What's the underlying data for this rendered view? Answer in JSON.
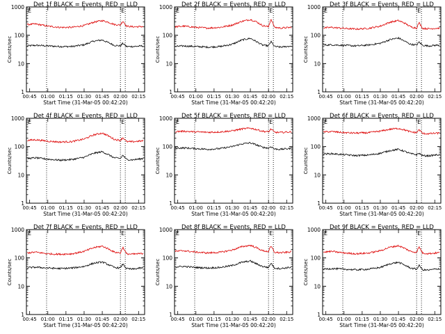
{
  "page": {
    "background": "#ffffff"
  },
  "colors": {
    "events": "#000000",
    "lld": "#dd0000",
    "axes": "#000000"
  },
  "chart_data": [
    {
      "type": "line",
      "title": "Det 1f  BLACK = Events, RED = LLD",
      "ylabel": "Counts/sec",
      "xlabel": "Start Time (31-Mar-05 00:42:20)",
      "xticks": [
        "00:45",
        "01:00",
        "01:15",
        "01:30",
        "01:45",
        "02:00",
        "02:15"
      ],
      "yticks": [
        "1",
        "10",
        "100",
        "1000"
      ],
      "ylim": [
        1,
        1000
      ],
      "yscale": "log",
      "xlim": [
        "00:42:20",
        "02:20:00"
      ],
      "vlines": [
        "00:59",
        "02:00",
        "02:04"
      ],
      "marker_labels": [
        "E",
        "E"
      ],
      "series": [
        {
          "name": "Events",
          "x": [
            "00:43",
            "00:50",
            "01:00",
            "01:10",
            "01:20",
            "01:30",
            "01:38",
            "01:45",
            "01:50",
            "01:55",
            "02:00",
            "02:02",
            "02:05",
            "02:10",
            "02:15",
            "02:19"
          ],
          "values": [
            42,
            44,
            42,
            40,
            40,
            46,
            62,
            68,
            55,
            44,
            42,
            52,
            40,
            40,
            41,
            42
          ]
        },
        {
          "name": "LLD",
          "x": [
            "00:43",
            "00:50",
            "01:00",
            "01:10",
            "01:20",
            "01:30",
            "01:38",
            "01:45",
            "01:50",
            "01:55",
            "02:00",
            "02:02",
            "02:05",
            "02:10",
            "02:15",
            "02:19"
          ],
          "values": [
            240,
            250,
            210,
            190,
            190,
            220,
            290,
            330,
            290,
            240,
            230,
            320,
            210,
            200,
            200,
            205
          ]
        }
      ]
    },
    {
      "type": "line",
      "title": "Det 2f  BLACK = Events, RED = LLD",
      "ylabel": "Counts/sec",
      "xlabel": "Start Time (31-Mar-05 00:42:20)",
      "xticks": [
        "00:45",
        "01:00",
        "01:15",
        "01:30",
        "01:45",
        "02:00",
        "02:15"
      ],
      "yticks": [
        "1",
        "10",
        "100",
        "1000"
      ],
      "ylim": [
        1,
        1000
      ],
      "yscale": "log",
      "xlim": [
        "00:42:20",
        "02:20:00"
      ],
      "vlines": [
        "00:59",
        "02:00",
        "02:04"
      ],
      "marker_labels": [
        "E",
        "E"
      ],
      "series": [
        {
          "name": "Events",
          "x": [
            "00:43",
            "00:50",
            "01:00",
            "01:10",
            "01:20",
            "01:30",
            "01:38",
            "01:45",
            "01:50",
            "01:55",
            "02:00",
            "02:02",
            "02:05",
            "02:10",
            "02:15",
            "02:19"
          ],
          "values": [
            40,
            42,
            40,
            38,
            40,
            48,
            68,
            78,
            60,
            45,
            42,
            60,
            40,
            38,
            40,
            42
          ]
        },
        {
          "name": "LLD",
          "x": [
            "00:43",
            "00:50",
            "01:00",
            "01:10",
            "01:20",
            "01:30",
            "01:38",
            "01:45",
            "01:50",
            "01:55",
            "02:00",
            "02:02",
            "02:05",
            "02:10",
            "02:15",
            "02:19"
          ],
          "values": [
            200,
            210,
            190,
            180,
            190,
            230,
            310,
            360,
            300,
            220,
            200,
            380,
            190,
            180,
            185,
            190
          ]
        }
      ]
    },
    {
      "type": "line",
      "title": "Det 3f  BLACK = Events, RED = LLD",
      "ylabel": "Counts/sec",
      "xlabel": "Start Time (31-Mar-05 00:42:20)",
      "xticks": [
        "00:45",
        "01:00",
        "01:15",
        "01:30",
        "01:45",
        "02:00",
        "02:15"
      ],
      "yticks": [
        "1",
        "10",
        "100",
        "1000"
      ],
      "ylim": [
        1,
        1000
      ],
      "yscale": "log",
      "xlim": [
        "00:42:20",
        "02:20:00"
      ],
      "vlines": [
        "00:59",
        "02:00",
        "02:04"
      ],
      "marker_labels": [
        "E",
        "E"
      ],
      "series": [
        {
          "name": "Events",
          "x": [
            "00:43",
            "00:50",
            "01:00",
            "01:10",
            "01:20",
            "01:30",
            "01:38",
            "01:45",
            "01:50",
            "01:55",
            "02:00",
            "02:02",
            "02:05",
            "02:10",
            "02:15",
            "02:19"
          ],
          "values": [
            45,
            46,
            44,
            42,
            45,
            52,
            70,
            80,
            62,
            48,
            45,
            58,
            44,
            42,
            44,
            45
          ]
        },
        {
          "name": "LLD",
          "x": [
            "00:43",
            "00:50",
            "01:00",
            "01:10",
            "01:20",
            "01:30",
            "01:38",
            "01:45",
            "01:50",
            "01:55",
            "02:00",
            "02:02",
            "02:05",
            "02:10",
            "02:15",
            "02:19"
          ],
          "values": [
            180,
            190,
            175,
            165,
            175,
            210,
            290,
            330,
            270,
            200,
            180,
            280,
            175,
            170,
            175,
            178
          ]
        }
      ]
    },
    {
      "type": "line",
      "title": "Det 4f  BLACK = Events, RED = LLD",
      "ylabel": "Counts/sec",
      "xlabel": "Start Time (31-Mar-05 00:42:20)",
      "xticks": [
        "00:45",
        "01:00",
        "01:15",
        "01:30",
        "01:45",
        "02:00",
        "02:15"
      ],
      "yticks": [
        "1",
        "10",
        "100",
        "1000"
      ],
      "ylim": [
        1,
        1000
      ],
      "yscale": "log",
      "xlim": [
        "00:42:20",
        "02:20:00"
      ],
      "vlines": [
        "00:59",
        "02:00",
        "02:04"
      ],
      "marker_labels": [
        "E",
        "E"
      ],
      "series": [
        {
          "name": "Events",
          "x": [
            "00:43",
            "00:50",
            "01:00",
            "01:10",
            "01:20",
            "01:30",
            "01:38",
            "01:45",
            "01:50",
            "01:55",
            "02:00",
            "02:02",
            "02:05",
            "02:10",
            "02:15",
            "02:19"
          ],
          "values": [
            38,
            40,
            36,
            33,
            35,
            42,
            58,
            66,
            52,
            40,
            38,
            50,
            35,
            34,
            36,
            38
          ]
        },
        {
          "name": "LLD",
          "x": [
            "00:43",
            "00:50",
            "01:00",
            "01:10",
            "01:20",
            "01:30",
            "01:38",
            "01:45",
            "01:50",
            "01:55",
            "02:00",
            "02:02",
            "02:05",
            "02:10",
            "02:15",
            "02:19"
          ],
          "values": [
            165,
            175,
            155,
            145,
            150,
            185,
            260,
            300,
            240,
            180,
            165,
            210,
            150,
            148,
            155,
            160
          ]
        }
      ]
    },
    {
      "type": "line",
      "title": "Det 5f  BLACK = Events, RED = LLD",
      "ylabel": "Counts/sec",
      "xlabel": "Start Time (31-Mar-05 00:42:20)",
      "xticks": [
        "00:45",
        "01:00",
        "01:15",
        "01:30",
        "01:45",
        "02:00",
        "02:15"
      ],
      "yticks": [
        "1",
        "10",
        "100",
        "1000"
      ],
      "ylim": [
        1,
        1000
      ],
      "yscale": "log",
      "xlim": [
        "00:42:20",
        "02:20:00"
      ],
      "vlines": [
        "00:59",
        "02:00",
        "02:04"
      ],
      "marker_labels": [
        "E",
        "E"
      ],
      "series": [
        {
          "name": "Events",
          "x": [
            "00:43",
            "00:50",
            "01:00",
            "01:10",
            "01:20",
            "01:30",
            "01:38",
            "01:45",
            "01:50",
            "01:55",
            "02:00",
            "02:02",
            "02:05",
            "02:10",
            "02:15",
            "02:19"
          ],
          "values": [
            88,
            90,
            85,
            80,
            85,
            100,
            125,
            135,
            115,
            95,
            88,
            100,
            82,
            80,
            84,
            86
          ]
        },
        {
          "name": "LLD",
          "x": [
            "00:43",
            "00:50",
            "01:00",
            "01:10",
            "01:20",
            "01:30",
            "01:38",
            "01:45",
            "01:50",
            "01:55",
            "02:00",
            "02:02",
            "02:05",
            "02:10",
            "02:15",
            "02:19"
          ],
          "values": [
            340,
            350,
            330,
            320,
            330,
            360,
            420,
            450,
            400,
            350,
            330,
            420,
            320,
            315,
            325,
            330
          ]
        }
      ]
    },
    {
      "type": "line",
      "title": "Det 6f  BLACK = Events, RED = LLD",
      "ylabel": "Counts/sec",
      "xlabel": "Start Time (31-Mar-05 00:42:20)",
      "xticks": [
        "00:45",
        "01:00",
        "01:15",
        "01:30",
        "01:45",
        "02:00",
        "02:15"
      ],
      "yticks": [
        "1",
        "10",
        "100",
        "1000"
      ],
      "ylim": [
        1,
        1000
      ],
      "yscale": "log",
      "xlim": [
        "00:42:20",
        "02:20:00"
      ],
      "vlines": [
        "00:59",
        "02:00",
        "02:04"
      ],
      "marker_labels": [
        "E",
        "E"
      ],
      "series": [
        {
          "name": "Events",
          "x": [
            "00:43",
            "00:50",
            "01:00",
            "01:10",
            "01:20",
            "01:30",
            "01:38",
            "01:45",
            "01:50",
            "01:55",
            "02:00",
            "02:02",
            "02:05",
            "02:10",
            "02:15",
            "02:19"
          ],
          "values": [
            55,
            56,
            52,
            48,
            50,
            58,
            72,
            80,
            68,
            56,
            52,
            58,
            48,
            47,
            50,
            52
          ]
        },
        {
          "name": "LLD",
          "x": [
            "00:43",
            "00:50",
            "01:00",
            "01:10",
            "01:20",
            "01:30",
            "01:38",
            "01:45",
            "01:50",
            "01:55",
            "02:00",
            "02:02",
            "02:05",
            "02:10",
            "02:15",
            "02:19"
          ],
          "values": [
            330,
            340,
            310,
            300,
            310,
            350,
            410,
            440,
            390,
            330,
            310,
            400,
            290,
            285,
            295,
            300
          ]
        }
      ]
    },
    {
      "type": "line",
      "title": "Det 7f  BLACK = Events, RED = LLD",
      "ylabel": "Counts/sec",
      "xlabel": "Start Time (31-Mar-05 00:42:20)",
      "xticks": [
        "00:45",
        "01:00",
        "01:15",
        "01:30",
        "01:45",
        "02:00",
        "02:15"
      ],
      "yticks": [
        "1",
        "10",
        "100",
        "1000"
      ],
      "ylim": [
        1,
        1000
      ],
      "yscale": "log",
      "xlim": [
        "00:42:20",
        "02:20:00"
      ],
      "vlines": [
        "00:59",
        "02:00",
        "02:04"
      ],
      "marker_labels": [
        "E",
        "E"
      ],
      "series": [
        {
          "name": "Events",
          "x": [
            "00:43",
            "00:50",
            "01:00",
            "01:10",
            "01:20",
            "01:30",
            "01:38",
            "01:45",
            "01:50",
            "01:55",
            "02:00",
            "02:02",
            "02:05",
            "02:10",
            "02:15",
            "02:19"
          ],
          "values": [
            45,
            47,
            44,
            42,
            44,
            50,
            65,
            72,
            58,
            46,
            44,
            62,
            42,
            40,
            43,
            45
          ]
        },
        {
          "name": "LLD",
          "x": [
            "00:43",
            "00:50",
            "01:00",
            "01:10",
            "01:20",
            "01:30",
            "01:38",
            "01:45",
            "01:50",
            "01:55",
            "02:00",
            "02:02",
            "02:05",
            "02:10",
            "02:15",
            "02:19"
          ],
          "values": [
            150,
            160,
            140,
            135,
            140,
            170,
            230,
            260,
            210,
            160,
            150,
            240,
            140,
            135,
            140,
            145
          ]
        }
      ]
    },
    {
      "type": "line",
      "title": "Det 8f  BLACK = Events, RED = LLD",
      "ylabel": "Counts/sec",
      "xlabel": "Start Time (31-Mar-05 00:42:20)",
      "xticks": [
        "00:45",
        "01:00",
        "01:15",
        "01:30",
        "01:45",
        "02:00",
        "02:15"
      ],
      "yticks": [
        "1",
        "10",
        "100",
        "1000"
      ],
      "ylim": [
        1,
        1000
      ],
      "yscale": "log",
      "xlim": [
        "00:42:20",
        "02:20:00"
      ],
      "vlines": [
        "00:59",
        "02:00",
        "02:04"
      ],
      "marker_labels": [
        "E",
        "E"
      ],
      "series": [
        {
          "name": "Events",
          "x": [
            "00:43",
            "00:50",
            "01:00",
            "01:10",
            "01:20",
            "01:30",
            "01:38",
            "01:45",
            "01:50",
            "01:55",
            "02:00",
            "02:02",
            "02:05",
            "02:10",
            "02:15",
            "02:19"
          ],
          "values": [
            48,
            50,
            46,
            44,
            46,
            54,
            70,
            78,
            62,
            50,
            46,
            66,
            44,
            42,
            45,
            47
          ]
        },
        {
          "name": "LLD",
          "x": [
            "00:43",
            "00:50",
            "01:00",
            "01:10",
            "01:20",
            "01:30",
            "01:38",
            "01:45",
            "01:50",
            "01:55",
            "02:00",
            "02:02",
            "02:05",
            "02:10",
            "02:15",
            "02:19"
          ],
          "values": [
            170,
            180,
            160,
            150,
            158,
            190,
            250,
            280,
            230,
            180,
            168,
            260,
            158,
            152,
            158,
            165
          ]
        }
      ]
    },
    {
      "type": "line",
      "title": "Det 9f  BLACK = Events, RED = LLD",
      "ylabel": "Counts/sec",
      "xlabel": "Start Time (31-Mar-05 00:42:20)",
      "xticks": [
        "00:45",
        "01:00",
        "01:15",
        "01:30",
        "01:45",
        "02:00",
        "02:15"
      ],
      "yticks": [
        "1",
        "10",
        "100",
        "1000"
      ],
      "ylim": [
        1,
        1000
      ],
      "yscale": "log",
      "xlim": [
        "00:42:20",
        "02:20:00"
      ],
      "vlines": [
        "00:59",
        "02:00",
        "02:04"
      ],
      "marker_labels": [
        "E",
        "E"
      ],
      "series": [
        {
          "name": "Events",
          "x": [
            "00:43",
            "00:50",
            "01:00",
            "01:10",
            "01:20",
            "01:30",
            "01:38",
            "01:45",
            "01:50",
            "01:55",
            "02:00",
            "02:02",
            "02:05",
            "02:10",
            "02:15",
            "02:19"
          ],
          "values": [
            40,
            42,
            40,
            38,
            40,
            46,
            62,
            70,
            56,
            44,
            40,
            55,
            38,
            37,
            40,
            42
          ]
        },
        {
          "name": "LLD",
          "x": [
            "00:43",
            "00:50",
            "01:00",
            "01:10",
            "01:20",
            "01:30",
            "01:38",
            "01:45",
            "01:50",
            "01:55",
            "02:00",
            "02:02",
            "02:05",
            "02:10",
            "02:15",
            "02:19"
          ],
          "values": [
            160,
            170,
            150,
            140,
            148,
            180,
            240,
            270,
            220,
            170,
            158,
            250,
            148,
            142,
            148,
            155
          ]
        }
      ]
    }
  ]
}
